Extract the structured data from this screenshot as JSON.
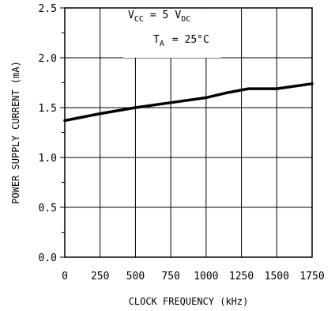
{
  "chart_data": {
    "type": "line",
    "xlabel": "CLOCK FREQUENCY (kHz)",
    "ylabel": "POWER SUPPLY CURRENT (mA)",
    "xlim": [
      0,
      1750
    ],
    "ylim": [
      0,
      2.5
    ],
    "x_ticks": [
      "0",
      "250",
      "500",
      "750",
      "1000",
      "1250",
      "1500",
      "1750"
    ],
    "y_ticks": [
      "0.0",
      "0.5",
      "1.0",
      "1.5",
      "2.0",
      "2.5"
    ],
    "grid": true,
    "annotations": {
      "vcc": {
        "symbol": "V",
        "sub": "CC",
        "eq": "= 5",
        "unit": "V",
        "unit_sub": "DC"
      },
      "ta": {
        "symbol": "T",
        "sub": "A",
        "eq": "= 25°C"
      }
    },
    "series": [
      {
        "x": [
          0,
          250,
          500,
          750,
          1000,
          1150,
          1300,
          1500,
          1750
        ],
        "y": [
          1.37,
          1.44,
          1.5,
          1.55,
          1.6,
          1.65,
          1.69,
          1.69,
          1.74
        ]
      }
    ]
  }
}
